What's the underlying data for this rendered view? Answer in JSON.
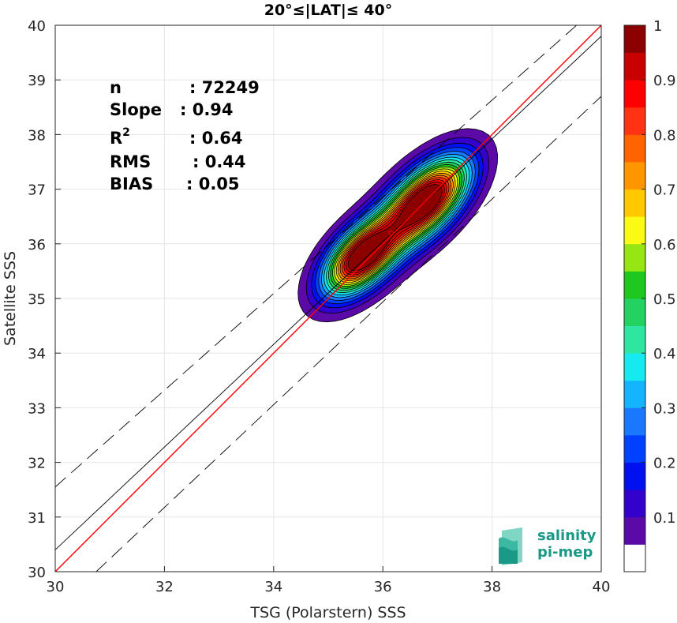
{
  "chart_data": {
    "type": "scatter",
    "subtype": "density-contour",
    "title": "20°≤|LAT|≤ 40°",
    "xlabel": "TSG (Polarstern) SSS",
    "ylabel": "Satellite SSS",
    "xlim": [
      30,
      40
    ],
    "ylim": [
      30,
      40
    ],
    "xticks": [
      30,
      32,
      34,
      36,
      38,
      40
    ],
    "yticks": [
      30,
      31,
      32,
      33,
      34,
      35,
      36,
      37,
      38,
      39,
      40
    ],
    "grid": true,
    "stats": [
      {
        "label": "n",
        "value": ": 72249"
      },
      {
        "label": "Slope",
        "value": ": 0.94"
      },
      {
        "label": "R",
        "sup": "2",
        "value": ": 0.64"
      },
      {
        "label": "RMS",
        "value": ": 0.44"
      },
      {
        "label": "BIAS",
        "value": ": 0.05"
      }
    ],
    "lines": {
      "one_to_one": {
        "color": "#ff0000",
        "x": [
          30,
          40
        ],
        "y": [
          30,
          40
        ]
      },
      "regression": {
        "color": "#000000",
        "x": [
          30,
          40
        ],
        "y": [
          30.4,
          39.8
        ]
      },
      "upper_bound": {
        "color": "#000000",
        "dash": true,
        "x": [
          30,
          40
        ],
        "y": [
          31.55,
          40.4
        ]
      },
      "lower_bound": {
        "color": "#000000",
        "dash": true,
        "x": [
          30.75,
          40
        ],
        "y": [
          30,
          38.7
        ]
      }
    },
    "density_peaks": [
      {
        "x": 35.6,
        "y": 35.75,
        "level": 0.95
      },
      {
        "x": 36.8,
        "y": 36.8,
        "level": 1.0
      }
    ],
    "colorbar": {
      "min": 0,
      "max": 1,
      "ticks": [
        "0.1",
        "0.2",
        "0.3",
        "0.4",
        "0.5",
        "0.6",
        "0.7",
        "0.8",
        "0.9",
        "1"
      ],
      "colors": [
        "#ffffff",
        "#5b0aa8",
        "#3300cc",
        "#0010ee",
        "#0040ff",
        "#1a78ff",
        "#14b4ff",
        "#14eaf0",
        "#2ee6a0",
        "#23d260",
        "#1ec81e",
        "#96e614",
        "#fafa14",
        "#ffc800",
        "#ff9600",
        "#ff6400",
        "#ff3214",
        "#ff0000",
        "#c80000",
        "#8c0000"
      ]
    },
    "logo": {
      "line1": "salinity",
      "line2": "pi-mep"
    }
  }
}
